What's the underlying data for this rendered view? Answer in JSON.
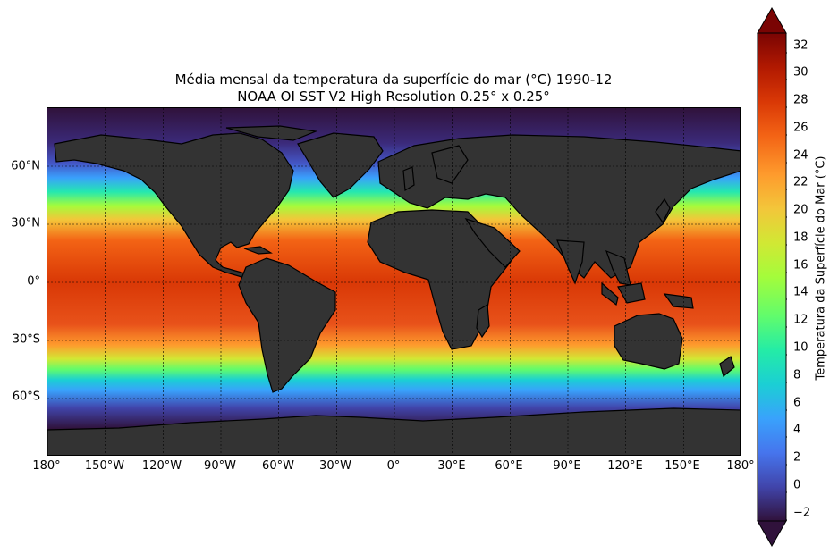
{
  "title": {
    "line1": "Média mensal da temperatura da superfície do mar (°C) 1990-12",
    "line2": "NOAA OI SST V2 High Resolution 0.25° x 0.25°"
  },
  "map": {
    "projection": "PlateCarree",
    "gridlines": "dashed",
    "land_color": "#333333",
    "coastline_color": "#000000",
    "x_ticks": [
      "180°",
      "150°W",
      "120°W",
      "90°W",
      "60°W",
      "30°W",
      "0°",
      "30°E",
      "60°E",
      "90°E",
      "120°E",
      "150°E",
      "180°"
    ],
    "y_ticks": [
      "60°N",
      "30°N",
      "0°",
      "30°S",
      "60°S"
    ],
    "lat_range": [
      -90,
      90
    ],
    "lon_range": [
      -180,
      180
    ]
  },
  "colorbar": {
    "label": "Temperatura da Superfície do Mar (°C)",
    "ticks": [
      "−2",
      "0",
      "2",
      "4",
      "6",
      "8",
      "10",
      "12",
      "14",
      "16",
      "18",
      "20",
      "22",
      "24",
      "26",
      "28",
      "30",
      "32"
    ],
    "range": [
      -2,
      33
    ],
    "extend": "both",
    "colormap": "turbo",
    "colors": [
      "#30123b",
      "#4145ab",
      "#4675ed",
      "#39a2fc",
      "#1bcfd4",
      "#24eca6",
      "#61fc6c",
      "#a4fc3b",
      "#d1e834",
      "#f3c63a",
      "#fe9b2d",
      "#f36315",
      "#d93806",
      "#b11901",
      "#7a0403"
    ]
  }
}
